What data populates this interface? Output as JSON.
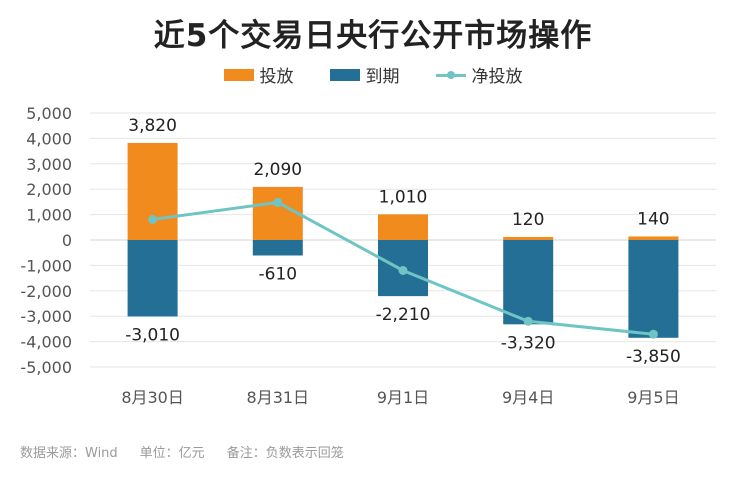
{
  "chart_data": {
    "type": "bar",
    "title": "近5个交易日央行公开市场操作",
    "categories": [
      "8月30日",
      "8月31日",
      "9月1日",
      "9月4日",
      "9月5日"
    ],
    "series": [
      {
        "name": "投放",
        "type": "bar",
        "values": [
          3820,
          2090,
          1010,
          120,
          140
        ],
        "labels": [
          "3,820",
          "2,090",
          "1,010",
          "120",
          "140"
        ],
        "color": "#f28b1e"
      },
      {
        "name": "到期",
        "type": "bar",
        "values": [
          -3010,
          -610,
          -2210,
          -3320,
          -3850
        ],
        "labels": [
          "-3,010",
          "-610",
          "-2,210",
          "-3,320",
          "-3,850"
        ],
        "color": "#236f96"
      },
      {
        "name": "净投放",
        "type": "line",
        "values": [
          810,
          1480,
          -1200,
          -3200,
          -3710
        ],
        "color": "#6fc4c4"
      }
    ],
    "yticks": [
      "5,000",
      "4,000",
      "3,000",
      "2,000",
      "1,000",
      "0",
      "-1,000",
      "-2,000",
      "-3,000",
      "-4,000",
      "-5,000"
    ],
    "ytick_values": [
      5000,
      4000,
      3000,
      2000,
      1000,
      0,
      -1000,
      -2000,
      -3000,
      -4000,
      -5000
    ],
    "ylim": [
      -5000,
      5000
    ],
    "grid": true,
    "legend": "top-center"
  },
  "footer": {
    "source": "数据来源：Wind",
    "unit": "单位：亿元",
    "note": "备注：负数表示回笼"
  }
}
